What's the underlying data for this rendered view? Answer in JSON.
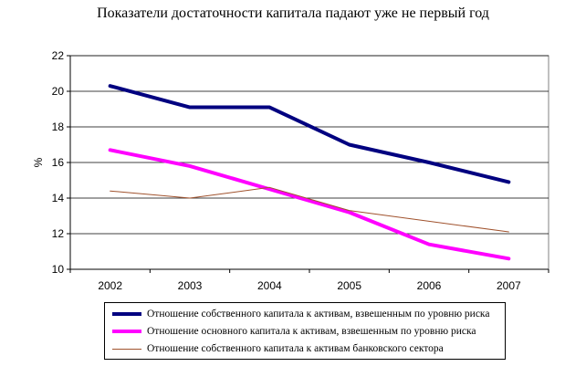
{
  "chart_data": {
    "type": "line",
    "title": "Показатели достаточности капитала падают уже не первый год",
    "ylabel": "%",
    "xlabel": "",
    "categories": [
      "2002",
      "2003",
      "2004",
      "2005",
      "2006",
      "2007"
    ],
    "ylim": [
      10,
      22
    ],
    "yticks": [
      10,
      12,
      14,
      16,
      18,
      20,
      22
    ],
    "grid": true,
    "legend_position": "bottom",
    "series": [
      {
        "name": "Отношение собственного капитала к активам, взвешенным по уровню риска",
        "values": [
          20.3,
          19.1,
          19.1,
          17.0,
          16.0,
          14.9
        ],
        "color": "#000080",
        "weight": "thick"
      },
      {
        "name": "Отношение основного капитала к активам, взвешенным по уровню риска",
        "values": [
          16.7,
          15.8,
          14.5,
          13.2,
          11.4,
          10.6
        ],
        "color": "#ff00ff",
        "weight": "thick"
      },
      {
        "name": "Отношение собственного капитала к активам банковского сектора",
        "values": [
          14.4,
          14.0,
          14.6,
          13.3,
          12.7,
          12.1
        ],
        "color": "#a0522d",
        "weight": "thin"
      }
    ]
  }
}
